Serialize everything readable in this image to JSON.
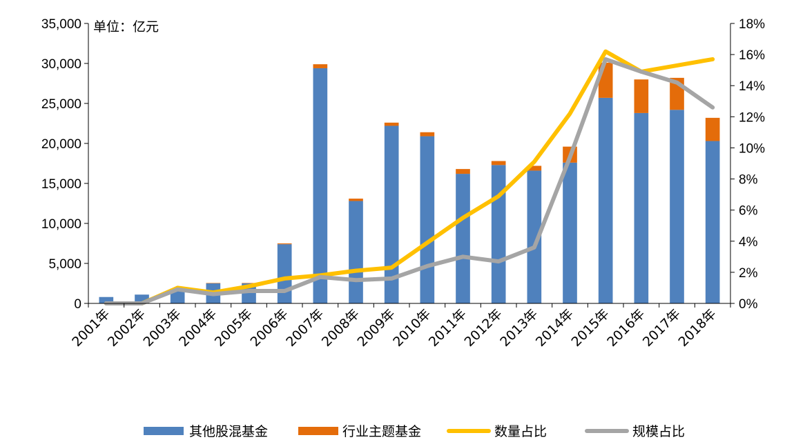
{
  "chart_data": {
    "type": "bar",
    "unit_label": "单位：亿元",
    "categories": [
      "2001年",
      "2002年",
      "2003年",
      "2004年",
      "2005年",
      "2006年",
      "2007年",
      "2008年",
      "2009年",
      "2010年",
      "2011年",
      "2012年",
      "2013年",
      "2014年",
      "2015年",
      "2016年",
      "2017年",
      "2018年"
    ],
    "y_left": {
      "min": 0,
      "max": 35000,
      "step": 5000,
      "tick_labels": [
        "0",
        "5,000",
        "10,000",
        "15,000",
        "20,000",
        "25,000",
        "30,000",
        "35,000"
      ]
    },
    "y_right": {
      "min": 0,
      "max": 18,
      "step": 2,
      "tick_labels": [
        "0%",
        "2%",
        "4%",
        "6%",
        "8%",
        "10%",
        "12%",
        "14%",
        "16%",
        "18%"
      ]
    },
    "stacked": true,
    "series": [
      {
        "name": "其他股混基金",
        "kind": "bar",
        "axis": "left",
        "color": "#4F81BD",
        "values": [
          800,
          1100,
          1800,
          2500,
          2500,
          7400,
          29400,
          12800,
          22200,
          20900,
          16200,
          17300,
          16600,
          17600,
          25700,
          23800,
          24200,
          20300
        ]
      },
      {
        "name": "行业主题基金",
        "kind": "bar",
        "axis": "left",
        "color": "#E46C0A",
        "values": [
          0,
          0,
          50,
          50,
          50,
          100,
          500,
          300,
          400,
          500,
          600,
          500,
          600,
          2000,
          4400,
          4200,
          4000,
          2900
        ]
      },
      {
        "name": "数量占比",
        "kind": "line",
        "axis": "right",
        "color": "#FFC000",
        "values": [
          0.0,
          0.0,
          1.0,
          0.7,
          1.1,
          1.6,
          1.8,
          2.1,
          2.3,
          3.9,
          5.5,
          6.9,
          9.1,
          12.2,
          16.2,
          14.9,
          15.3,
          15.7
        ]
      },
      {
        "name": "规模占比",
        "kind": "line",
        "axis": "right",
        "color": "#A5A5A5",
        "values": [
          0.0,
          0.0,
          0.9,
          0.6,
          0.8,
          0.8,
          1.7,
          1.5,
          1.6,
          2.4,
          3.0,
          2.7,
          3.6,
          9.4,
          15.7,
          14.9,
          14.2,
          12.6
        ]
      }
    ],
    "legend_position": "bottom",
    "grid": false
  }
}
